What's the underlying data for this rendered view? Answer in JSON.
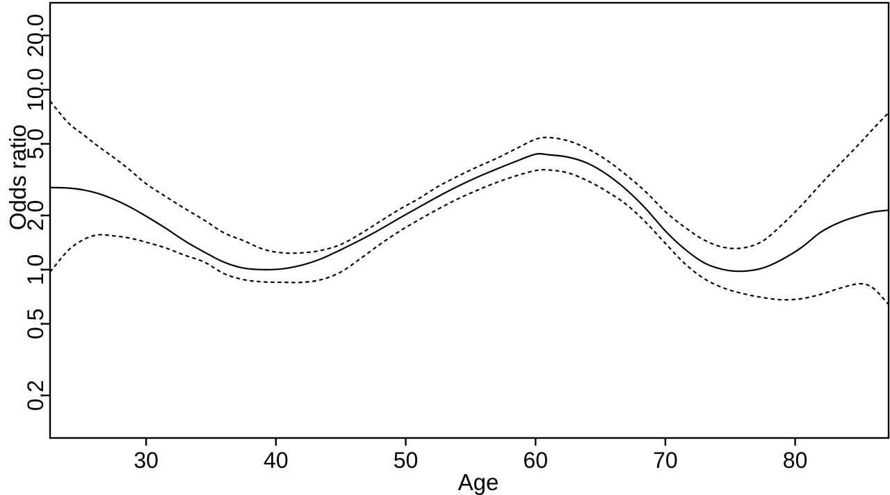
{
  "figure": {
    "background": "#ffffff",
    "line_color": "#000000"
  },
  "chart_data": {
    "type": "line",
    "title": "",
    "xlabel": "Age",
    "ylabel": "Odds ratio",
    "x_scale": "linear",
    "y_scale": "log",
    "grid": false,
    "legend": "none",
    "xlim": [
      22.6,
      87.2
    ],
    "ylim": [
      0.116,
      30.4
    ],
    "x_ticks": [
      30,
      40,
      50,
      60,
      70,
      80
    ],
    "x_tick_labels": [
      "30",
      "40",
      "50",
      "60",
      "70",
      "80"
    ],
    "y_ticks": [
      0.2,
      0.5,
      1.0,
      2.0,
      5.0,
      10.0,
      20.0
    ],
    "y_tick_labels": [
      "0.2",
      "0.5",
      "1.0",
      "2.0",
      "5.0",
      "10.0",
      "20.0"
    ],
    "x": [
      22.6,
      24,
      25.2,
      26.3,
      27.5,
      28.7,
      30,
      31.5,
      33,
      34.5,
      36,
      37.5,
      39,
      40.5,
      42,
      43.5,
      45,
      46.5,
      48,
      49.5,
      51,
      52.5,
      54,
      55.5,
      57,
      58.5,
      60,
      61,
      62.5,
      64,
      65.5,
      67,
      68.5,
      70,
      71.5,
      73,
      74.5,
      76,
      77.5,
      79,
      80.5,
      82,
      83.5,
      85,
      86,
      87.2
    ],
    "series": [
      {
        "name": "odds_ratio_estimate",
        "label": "Odds ratio point estimate (solid)",
        "line_style": "solid",
        "values": [
          2.86,
          2.84,
          2.77,
          2.65,
          2.46,
          2.24,
          1.98,
          1.7,
          1.44,
          1.25,
          1.1,
          1.02,
          1.0,
          1.01,
          1.06,
          1.15,
          1.29,
          1.46,
          1.67,
          1.93,
          2.22,
          2.55,
          2.9,
          3.26,
          3.62,
          4.0,
          4.38,
          4.35,
          4.22,
          3.9,
          3.38,
          2.78,
          2.18,
          1.64,
          1.3,
          1.09,
          1.0,
          0.98,
          1.02,
          1.14,
          1.33,
          1.62,
          1.84,
          2.0,
          2.09,
          2.14
        ]
      },
      {
        "name": "ci_upper",
        "label": "Upper confidence band (dashed)",
        "line_style": "dashed",
        "values": [
          8.65,
          6.55,
          5.6,
          4.85,
          4.2,
          3.6,
          3.0,
          2.55,
          2.18,
          1.88,
          1.6,
          1.45,
          1.3,
          1.24,
          1.24,
          1.28,
          1.38,
          1.58,
          1.85,
          2.16,
          2.48,
          2.9,
          3.3,
          3.72,
          4.15,
          4.7,
          5.3,
          5.42,
          5.2,
          4.7,
          4.05,
          3.35,
          2.7,
          2.1,
          1.72,
          1.46,
          1.33,
          1.32,
          1.44,
          1.78,
          2.28,
          3.0,
          3.9,
          5.05,
          6.05,
          7.45
        ]
      },
      {
        "name": "ci_lower",
        "label": "Lower confidence band (dashed)",
        "line_style": "dashed",
        "values": [
          0.97,
          1.28,
          1.47,
          1.56,
          1.54,
          1.5,
          1.42,
          1.32,
          1.2,
          1.1,
          0.95,
          0.88,
          0.855,
          0.85,
          0.85,
          0.88,
          0.97,
          1.15,
          1.38,
          1.63,
          1.89,
          2.17,
          2.47,
          2.76,
          3.05,
          3.32,
          3.55,
          3.58,
          3.45,
          3.12,
          2.72,
          2.3,
          1.83,
          1.4,
          1.08,
          0.89,
          0.79,
          0.735,
          0.7,
          0.68,
          0.69,
          0.73,
          0.79,
          0.835,
          0.79,
          0.64
        ]
      }
    ]
  }
}
